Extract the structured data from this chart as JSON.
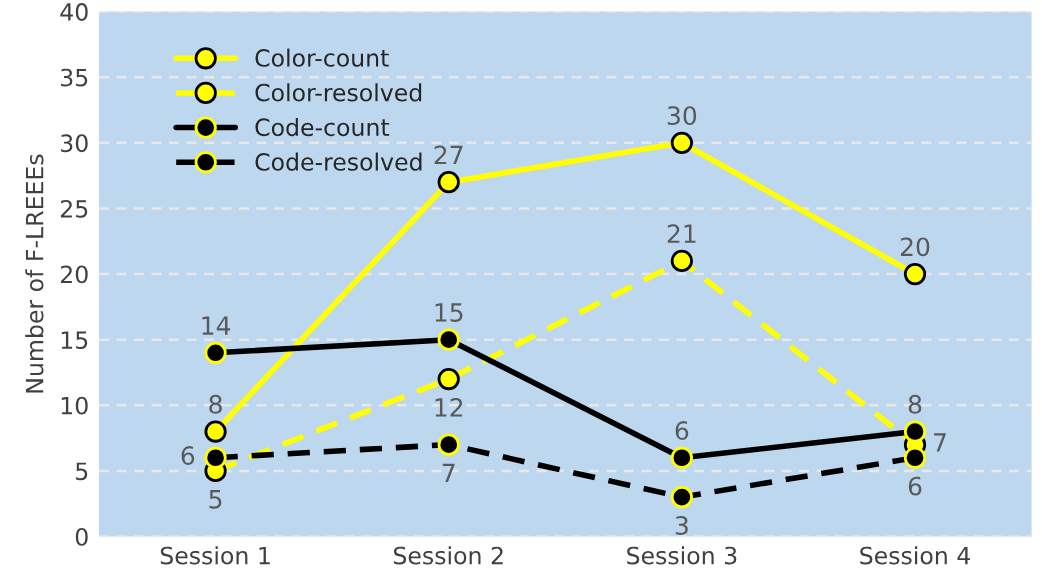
{
  "chart_data": {
    "type": "line",
    "ylabel": "Number of F-LREEEs",
    "categories": [
      "Session 1",
      "Session 2",
      "Session 3",
      "Session 4"
    ],
    "series": [
      {
        "name": "Color-count",
        "color": "#ffff00",
        "values": [
          8,
          27,
          30,
          20
        ],
        "line_style": "solid"
      },
      {
        "name": "Color-resolved",
        "color": "#ffff00",
        "values": [
          5,
          12,
          21,
          7
        ],
        "line_style": "dashed"
      },
      {
        "name": "Code-count",
        "color": "#000000",
        "values": [
          14,
          15,
          6,
          8
        ],
        "line_style": "solid"
      },
      {
        "name": "Code-resolved",
        "color": "#000000",
        "values": [
          6,
          7,
          3,
          6
        ],
        "line_style": "dashed"
      }
    ],
    "ylim": [
      0,
      40
    ],
    "yticks": [
      0,
      5,
      10,
      15,
      20,
      25,
      30,
      35,
      40
    ],
    "grid": "y",
    "legend": "top left",
    "marker": "circle",
    "data_labels": true
  }
}
